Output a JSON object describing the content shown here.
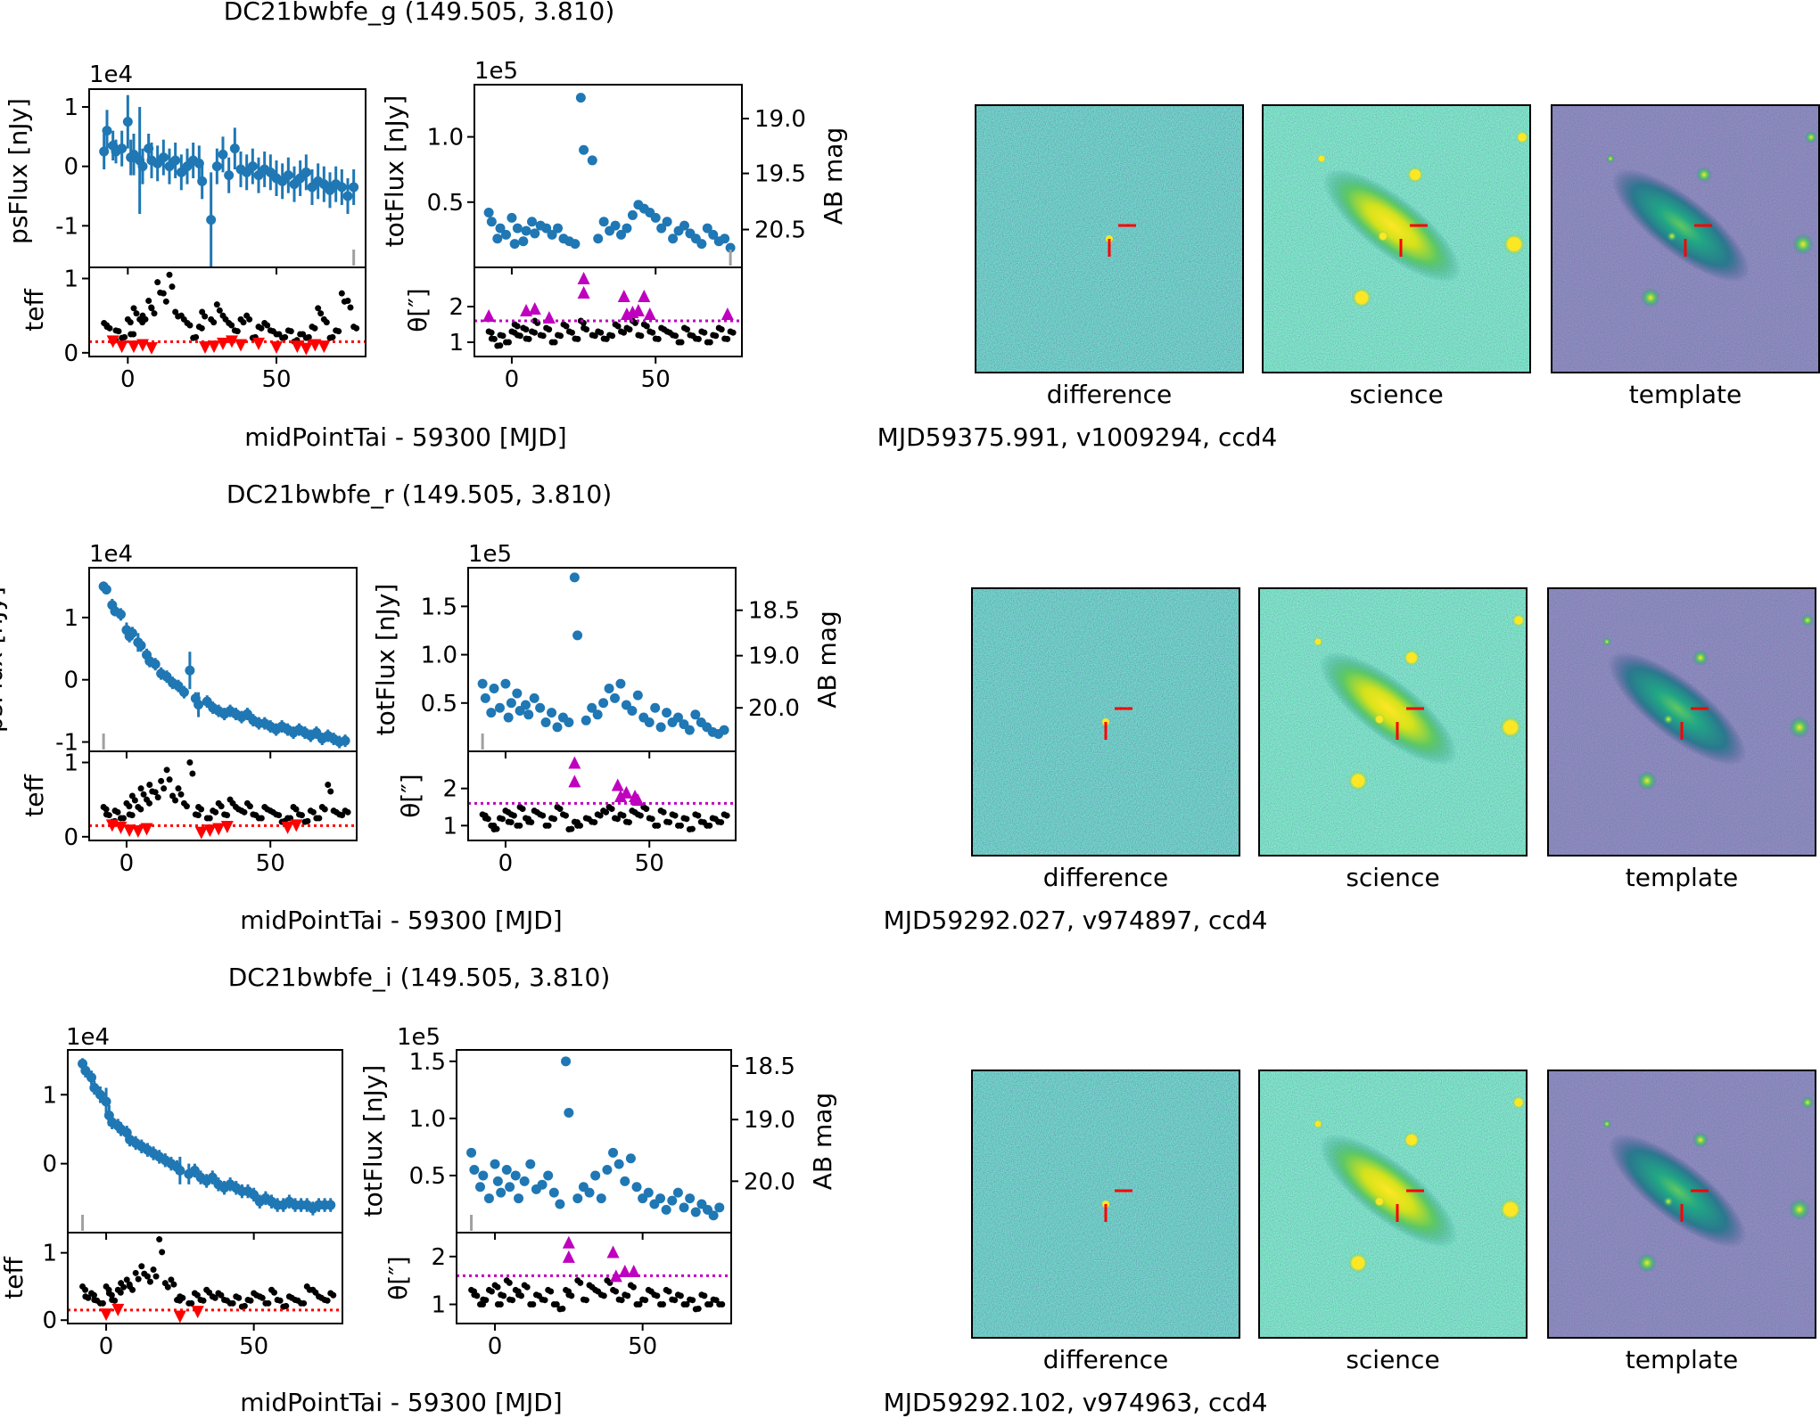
{
  "colors": {
    "blue": "#1f77b4",
    "black": "#000000",
    "red": "#ff0000",
    "magenta": "#bf00bf",
    "gray": "#a0a0a0",
    "axis": "#000000"
  },
  "common": {
    "xlabel": "midPointTai - 59300 [MJD]",
    "ps_ylabel": "psFlux [nJy]",
    "tot_ylabel": "totFlux [nJy]",
    "teff_ylabel": "teff",
    "theta_ylabel": "θ[″]",
    "ab_ylabel": "AB mag",
    "ps_exponent": "1e4",
    "tot_exponent": "1e5",
    "stamp_labels": [
      "difference",
      "science",
      "template"
    ]
  },
  "chart_data": [
    {
      "type": "scatter",
      "title": "DC21bwbfe_g (149.505, 3.810)",
      "cutout_caption": "MJD59375.991, v1009294, ccd4",
      "x": [
        -8,
        -7,
        -5,
        -4,
        -2,
        0,
        1,
        2,
        4,
        5,
        7,
        8,
        10,
        12,
        14,
        16,
        18,
        20,
        22,
        24,
        25,
        28,
        30,
        32,
        34,
        36,
        38,
        40,
        42,
        44,
        46,
        48,
        50,
        52,
        54,
        56,
        58,
        60,
        62,
        64,
        66,
        68,
        70,
        72,
        74,
        76
      ],
      "psflux": [
        0.25,
        0.6,
        0.35,
        0.25,
        0.3,
        0.75,
        0.15,
        0.2,
        0.1,
        0.0,
        0.3,
        0.1,
        0.05,
        0.15,
        0.0,
        0.1,
        -0.1,
        0.0,
        0.1,
        0.05,
        -0.25,
        -0.9,
        0.0,
        0.2,
        -0.15,
        0.3,
        -0.05,
        -0.1,
        0.0,
        -0.15,
        -0.05,
        -0.1,
        -0.2,
        -0.25,
        -0.15,
        -0.3,
        -0.2,
        -0.1,
        -0.35,
        -0.25,
        -0.3,
        -0.4,
        -0.3,
        -0.35,
        -0.5,
        -0.35
      ],
      "pserr": [
        0.3,
        0.35,
        0.25,
        0.2,
        0.3,
        0.45,
        0.3,
        0.35,
        0.9,
        0.3,
        0.25,
        0.3,
        0.3,
        0.3,
        0.3,
        0.3,
        0.3,
        0.3,
        0.3,
        0.3,
        0.3,
        0.8,
        0.3,
        0.3,
        0.3,
        0.35,
        0.3,
        0.3,
        0.3,
        0.3,
        0.3,
        0.3,
        0.3,
        0.3,
        0.3,
        0.3,
        0.3,
        0.3,
        0.3,
        0.3,
        0.3,
        0.3,
        0.3,
        0.3,
        0.3,
        0.3
      ],
      "ps_ylim": [
        -1.7,
        1.3
      ],
      "ps_yticks": [
        -1,
        0,
        1
      ],
      "totflux": [
        0.42,
        0.35,
        0.22,
        0.3,
        0.25,
        0.38,
        0.18,
        0.3,
        0.2,
        0.28,
        0.35,
        0.26,
        0.32,
        0.3,
        0.25,
        0.3,
        0.22,
        0.2,
        0.18,
        1.3,
        0.9,
        0.82,
        0.22,
        0.35,
        0.28,
        0.32,
        0.25,
        0.3,
        0.4,
        0.48,
        0.45,
        0.42,
        0.38,
        0.3,
        0.35,
        0.22,
        0.28,
        0.32,
        0.26,
        0.22,
        0.18,
        0.3,
        0.25,
        0.2,
        0.22,
        0.15
      ],
      "tot_ylim": [
        0.0,
        1.4
      ],
      "tot_yticks": [
        0.5,
        1.0
      ],
      "ab_ticks": [
        {
          "mag": "19.0",
          "flux": 1.14
        },
        {
          "mag": "19.5",
          "flux": 0.72
        },
        {
          "mag": "20.5",
          "flux": 0.29
        }
      ],
      "teff": [
        0.4,
        0.35,
        0.15,
        0.3,
        0.2,
        0.45,
        0.25,
        0.6,
        0.45,
        0.5,
        0.7,
        0.6,
        0.95,
        0.8,
        1.05,
        0.55,
        0.5,
        0.4,
        0.2,
        0.35,
        0.55,
        0.45,
        0.65,
        0.5,
        0.4,
        0.3,
        0.45,
        0.5,
        0.2,
        0.35,
        0.4,
        0.3,
        0.25,
        0.2,
        0.3,
        0.15,
        0.25,
        0.2,
        0.35,
        0.6,
        0.45,
        0.2,
        0.3,
        0.8,
        0.7,
        0.35
      ],
      "teff_low": [
        {
          "x": -5,
          "y": 0.15
        },
        {
          "x": -2,
          "y": 0.08
        },
        {
          "x": 2,
          "y": 0.08
        },
        {
          "x": 5,
          "y": 0.1
        },
        {
          "x": 8,
          "y": 0.06
        },
        {
          "x": 26,
          "y": 0.07
        },
        {
          "x": 29,
          "y": 0.08
        },
        {
          "x": 32,
          "y": 0.12
        },
        {
          "x": 35,
          "y": 0.15
        },
        {
          "x": 38,
          "y": 0.1
        },
        {
          "x": 44,
          "y": 0.12
        },
        {
          "x": 50,
          "y": 0.07
        },
        {
          "x": 57,
          "y": 0.08
        },
        {
          "x": 60,
          "y": 0.05
        },
        {
          "x": 63,
          "y": 0.1
        },
        {
          "x": 66,
          "y": 0.08
        }
      ],
      "teff_ylim": [
        -0.05,
        1.15
      ],
      "teff_yticks": [
        0,
        1
      ],
      "teff_threshold": 0.15,
      "theta": [
        1.3,
        1.1,
        0.9,
        1.2,
        1.0,
        1.3,
        1.5,
        1.2,
        1.4,
        1.1,
        1.3,
        1.6,
        1.2,
        1.4,
        1.0,
        1.2,
        1.5,
        1.3,
        1.1,
        1.6,
        1.4,
        1.2,
        1.3,
        1.1,
        1.2,
        1.5,
        1.3,
        1.4,
        1.6,
        1.2,
        1.5,
        1.3,
        1.1,
        1.4,
        1.3,
        1.2,
        1.0,
        1.4,
        1.2,
        1.1,
        1.3,
        1.0,
        1.2,
        1.4,
        1.1,
        1.3
      ],
      "theta_high": [
        {
          "x": -8,
          "y": 1.75
        },
        {
          "x": 5,
          "y": 1.9
        },
        {
          "x": 8,
          "y": 1.95
        },
        {
          "x": 13,
          "y": 1.7
        },
        {
          "x": 25,
          "y": 2.4
        },
        {
          "x": 25,
          "y": 2.8
        },
        {
          "x": 39,
          "y": 2.3
        },
        {
          "x": 40,
          "y": 1.8
        },
        {
          "x": 42,
          "y": 1.85
        },
        {
          "x": 44,
          "y": 1.9
        },
        {
          "x": 46,
          "y": 2.3
        },
        {
          "x": 48,
          "y": 1.8
        },
        {
          "x": 75,
          "y": 1.8
        }
      ],
      "theta_ylim": [
        0.6,
        3.1
      ],
      "theta_yticks": [
        1,
        2
      ],
      "theta_threshold": 1.6,
      "xlim": [
        -13,
        80
      ],
      "xticks": [
        0,
        50
      ],
      "gray_marker_x": 76
    },
    {
      "type": "scatter",
      "title": "DC21bwbfe_r (149.505, 3.810)",
      "cutout_caption": "MJD59292.027, v974897, ccd4",
      "x": [
        -8,
        -7,
        -5,
        -4,
        -2,
        0,
        1,
        2,
        4,
        5,
        7,
        8,
        10,
        12,
        14,
        16,
        18,
        20,
        22,
        24,
        25,
        28,
        30,
        32,
        34,
        36,
        38,
        40,
        42,
        44,
        46,
        48,
        50,
        52,
        54,
        56,
        58,
        60,
        62,
        64,
        66,
        68,
        70,
        72,
        74,
        76
      ],
      "psflux": [
        1.5,
        1.45,
        1.2,
        1.1,
        1.05,
        0.8,
        0.7,
        0.75,
        0.6,
        0.55,
        0.4,
        0.3,
        0.25,
        0.1,
        0.05,
        -0.05,
        -0.1,
        -0.2,
        0.15,
        -0.3,
        -0.4,
        -0.35,
        -0.45,
        -0.5,
        -0.55,
        -0.5,
        -0.55,
        -0.6,
        -0.55,
        -0.65,
        -0.7,
        -0.7,
        -0.75,
        -0.8,
        -0.75,
        -0.8,
        -0.85,
        -0.8,
        -0.85,
        -0.9,
        -0.85,
        -0.95,
        -0.9,
        -0.95,
        -1.0,
        -0.98
      ],
      "pserr": [
        0.08,
        0.08,
        0.1,
        0.08,
        0.1,
        0.12,
        0.1,
        0.1,
        0.15,
        0.1,
        0.1,
        0.1,
        0.1,
        0.1,
        0.1,
        0.1,
        0.1,
        0.1,
        0.3,
        0.1,
        0.2,
        0.1,
        0.1,
        0.1,
        0.1,
        0.1,
        0.1,
        0.1,
        0.1,
        0.1,
        0.1,
        0.1,
        0.1,
        0.1,
        0.1,
        0.1,
        0.1,
        0.1,
        0.1,
        0.1,
        0.1,
        0.1,
        0.1,
        0.1,
        0.1,
        0.1
      ],
      "ps_ylim": [
        -1.15,
        1.8
      ],
      "ps_yticks": [
        -1,
        0,
        1
      ],
      "totflux": [
        0.7,
        0.55,
        0.4,
        0.65,
        0.45,
        0.7,
        0.35,
        0.5,
        0.6,
        0.42,
        0.48,
        0.38,
        0.55,
        0.45,
        0.3,
        0.4,
        0.25,
        0.35,
        0.3,
        1.8,
        1.2,
        0.32,
        0.45,
        0.38,
        0.5,
        0.65,
        0.55,
        0.7,
        0.48,
        0.42,
        0.58,
        0.35,
        0.3,
        0.45,
        0.25,
        0.4,
        0.3,
        0.35,
        0.28,
        0.22,
        0.38,
        0.3,
        0.25,
        0.2,
        0.18,
        0.22
      ],
      "tot_ylim": [
        0.0,
        1.9
      ],
      "tot_yticks": [
        0.5,
        1.0,
        1.5
      ],
      "ab_ticks": [
        {
          "mag": "18.5",
          "flux": 1.46
        },
        {
          "mag": "19.0",
          "flux": 0.99
        },
        {
          "mag": "20.0",
          "flux": 0.45
        }
      ],
      "teff": [
        0.4,
        0.3,
        0.2,
        0.35,
        0.25,
        0.45,
        0.3,
        0.55,
        0.4,
        0.65,
        0.5,
        0.7,
        0.6,
        0.75,
        0.9,
        0.55,
        0.65,
        0.45,
        1.0,
        0.3,
        0.4,
        0.25,
        0.35,
        0.45,
        0.3,
        0.5,
        0.4,
        0.35,
        0.45,
        0.3,
        0.25,
        0.4,
        0.35,
        0.3,
        0.2,
        0.25,
        0.4,
        0.3,
        0.2,
        0.35,
        0.25,
        0.4,
        0.7,
        0.35,
        0.3,
        0.35
      ],
      "teff_low": [
        {
          "x": -5,
          "y": 0.15
        },
        {
          "x": -2,
          "y": 0.12
        },
        {
          "x": 1,
          "y": 0.08
        },
        {
          "x": 4,
          "y": 0.07
        },
        {
          "x": 7,
          "y": 0.1
        },
        {
          "x": 26,
          "y": 0.05
        },
        {
          "x": 29,
          "y": 0.08
        },
        {
          "x": 32,
          "y": 0.1
        },
        {
          "x": 35,
          "y": 0.13
        },
        {
          "x": 56,
          "y": 0.12
        },
        {
          "x": 59,
          "y": 0.15
        }
      ],
      "teff_ylim": [
        -0.05,
        1.15
      ],
      "teff_yticks": [
        0,
        1
      ],
      "teff_threshold": 0.15,
      "theta": [
        1.3,
        1.2,
        1.0,
        0.9,
        1.2,
        1.4,
        1.1,
        1.3,
        1.0,
        1.5,
        1.2,
        1.1,
        1.4,
        1.3,
        1.0,
        1.2,
        1.5,
        1.3,
        0.9,
        1.1,
        1.0,
        1.2,
        1.1,
        1.3,
        1.4,
        1.5,
        1.2,
        1.3,
        1.1,
        1.4,
        1.3,
        1.5,
        1.2,
        1.0,
        1.4,
        1.1,
        1.3,
        1.0,
        1.2,
        0.9,
        1.3,
        1.1,
        1.0,
        1.2,
        1.1,
        1.3
      ],
      "theta_high": [
        {
          "x": 24,
          "y": 2.7
        },
        {
          "x": 24,
          "y": 2.2
        },
        {
          "x": 39,
          "y": 2.1
        },
        {
          "x": 40,
          "y": 1.8
        },
        {
          "x": 42,
          "y": 1.9
        },
        {
          "x": 45,
          "y": 1.8
        },
        {
          "x": 46,
          "y": 1.7
        }
      ],
      "theta_ylim": [
        0.6,
        3.0
      ],
      "theta_yticks": [
        1,
        2
      ],
      "theta_threshold": 1.6,
      "xlim": [
        -13,
        80
      ],
      "xticks": [
        0,
        50
      ],
      "gray_marker_x": -8
    },
    {
      "type": "scatter",
      "title": "DC21bwbfe_i (149.505, 3.810)",
      "cutout_caption": "MJD59292.102, v974963, ccd4",
      "x": [
        -8,
        -7,
        -5,
        -4,
        -2,
        0,
        1,
        2,
        4,
        5,
        7,
        8,
        10,
        12,
        14,
        16,
        18,
        20,
        22,
        24,
        25,
        28,
        30,
        32,
        34,
        36,
        38,
        40,
        42,
        44,
        46,
        48,
        50,
        52,
        54,
        56,
        58,
        60,
        62,
        64,
        66,
        68,
        70,
        72,
        74,
        76
      ],
      "psflux": [
        1.45,
        1.35,
        1.25,
        1.1,
        1.0,
        0.9,
        0.7,
        0.6,
        0.55,
        0.5,
        0.45,
        0.35,
        0.3,
        0.25,
        0.2,
        0.15,
        0.1,
        0.05,
        0.0,
        -0.05,
        -0.1,
        -0.15,
        -0.1,
        -0.2,
        -0.25,
        -0.2,
        -0.3,
        -0.35,
        -0.3,
        -0.35,
        -0.4,
        -0.4,
        -0.45,
        -0.55,
        -0.5,
        -0.55,
        -0.6,
        -0.6,
        -0.55,
        -0.6,
        -0.6,
        -0.6,
        -0.65,
        -0.6,
        -0.6,
        -0.6
      ],
      "pserr": [
        0.08,
        0.1,
        0.1,
        0.1,
        0.12,
        0.2,
        0.15,
        0.1,
        0.1,
        0.1,
        0.1,
        0.1,
        0.1,
        0.1,
        0.1,
        0.1,
        0.1,
        0.1,
        0.1,
        0.1,
        0.2,
        0.15,
        0.1,
        0.1,
        0.1,
        0.1,
        0.1,
        0.1,
        0.1,
        0.1,
        0.1,
        0.1,
        0.1,
        0.1,
        0.1,
        0.1,
        0.1,
        0.1,
        0.1,
        0.1,
        0.1,
        0.1,
        0.1,
        0.1,
        0.1,
        0.1
      ],
      "ps_ylim": [
        -1.0,
        1.65
      ],
      "ps_yticks": [
        0,
        1
      ],
      "totflux": [
        0.7,
        0.55,
        0.4,
        0.5,
        0.3,
        0.6,
        0.45,
        0.35,
        0.55,
        0.4,
        0.5,
        0.3,
        0.45,
        0.6,
        0.38,
        0.42,
        0.5,
        0.35,
        0.25,
        1.5,
        1.05,
        0.3,
        0.4,
        0.35,
        0.5,
        0.3,
        0.55,
        0.7,
        0.6,
        0.45,
        0.65,
        0.4,
        0.3,
        0.35,
        0.25,
        0.3,
        0.2,
        0.28,
        0.35,
        0.22,
        0.3,
        0.18,
        0.25,
        0.2,
        0.15,
        0.22
      ],
      "tot_ylim": [
        0.0,
        1.6
      ],
      "tot_yticks": [
        0.5,
        1.0,
        1.5
      ],
      "ab_ticks": [
        {
          "mag": "18.5",
          "flux": 1.46
        },
        {
          "mag": "19.0",
          "flux": 0.99
        },
        {
          "mag": "20.0",
          "flux": 0.45
        }
      ],
      "teff": [
        0.5,
        0.35,
        0.4,
        0.3,
        0.25,
        0.5,
        0.4,
        0.3,
        0.45,
        0.55,
        0.6,
        0.5,
        0.7,
        0.8,
        0.65,
        0.75,
        1.2,
        0.55,
        0.6,
        0.3,
        0.35,
        0.25,
        0.4,
        0.3,
        0.45,
        0.35,
        0.4,
        0.3,
        0.25,
        0.35,
        0.2,
        0.3,
        0.4,
        0.35,
        0.25,
        0.45,
        0.3,
        0.2,
        0.35,
        0.3,
        0.25,
        0.5,
        0.45,
        0.35,
        0.3,
        0.4
      ],
      "teff_low": [
        {
          "x": 0,
          "y": 0.08
        },
        {
          "x": 4,
          "y": 0.15
        },
        {
          "x": 25,
          "y": 0.05
        },
        {
          "x": 31,
          "y": 0.12
        }
      ],
      "teff_ylim": [
        -0.05,
        1.3
      ],
      "teff_yticks": [
        0,
        1
      ],
      "teff_threshold": 0.15,
      "theta": [
        1.3,
        1.2,
        1.0,
        1.1,
        1.3,
        1.4,
        1.0,
        1.2,
        1.5,
        1.1,
        1.3,
        1.2,
        1.4,
        1.0,
        1.2,
        1.1,
        1.3,
        1.0,
        0.9,
        1.3,
        1.2,
        1.5,
        1.1,
        1.4,
        1.3,
        1.2,
        1.5,
        1.3,
        1.1,
        1.2,
        1.4,
        1.0,
        1.1,
        1.3,
        1.2,
        1.0,
        1.3,
        1.1,
        1.2,
        1.0,
        1.1,
        0.9,
        1.2,
        1.0,
        1.1,
        1.0
      ],
      "theta_high": [
        {
          "x": 25,
          "y": 2.3
        },
        {
          "x": 25,
          "y": 2.0
        },
        {
          "x": 40,
          "y": 2.1
        },
        {
          "x": 41,
          "y": 1.6
        },
        {
          "x": 44,
          "y": 1.7
        },
        {
          "x": 47,
          "y": 1.7
        }
      ],
      "theta_ylim": [
        0.6,
        2.5
      ],
      "theta_yticks": [
        1,
        2
      ],
      "theta_threshold": 1.6,
      "xlim": [
        -13,
        80
      ],
      "xticks": [
        0,
        50
      ],
      "gray_marker_x": -8
    }
  ]
}
